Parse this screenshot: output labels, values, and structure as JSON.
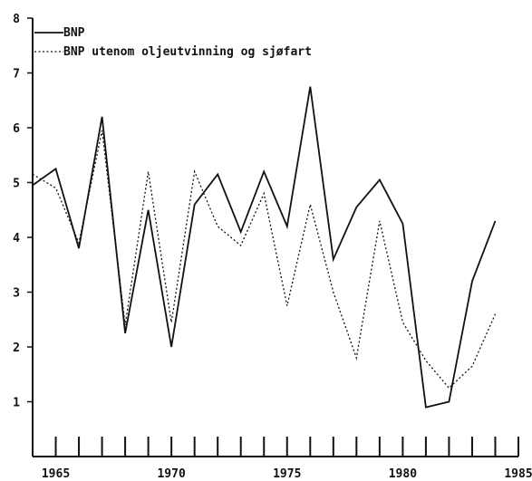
{
  "chart_data": {
    "type": "line",
    "title": "",
    "xlabel": "",
    "ylabel": "",
    "xlim": [
      1964,
      1985
    ],
    "ylim": [
      0,
      8
    ],
    "x_ticks": [
      1965,
      1970,
      1975,
      1980,
      1985
    ],
    "x_tick_labels": [
      "1965",
      "1970",
      "1975",
      "1980",
      "1985"
    ],
    "y_ticks": [
      1,
      2,
      3,
      4,
      5,
      6,
      7,
      8
    ],
    "y_tick_labels": [
      "1",
      "2",
      "3",
      "4",
      "5",
      "6",
      "7",
      "8"
    ],
    "legend_position": "top-left",
    "grid": false,
    "x": [
      1964,
      1965,
      1966,
      1967,
      1968,
      1969,
      1970,
      1971,
      1972,
      1973,
      1974,
      1975,
      1976,
      1977,
      1978,
      1979,
      1980,
      1981,
      1982,
      1983,
      1984
    ],
    "series": [
      {
        "name": "BNP",
        "style": "solid",
        "values": [
          4.95,
          5.25,
          3.8,
          6.2,
          2.25,
          4.5,
          2.0,
          4.6,
          5.15,
          4.1,
          5.2,
          4.2,
          6.75,
          3.6,
          4.55,
          5.05,
          4.25,
          0.9,
          1.0,
          3.2,
          4.3
        ]
      },
      {
        "name": "BNP utenom oljeutvinning og sjøfart",
        "style": "dotted",
        "values": [
          5.15,
          4.9,
          3.9,
          5.95,
          2.4,
          5.2,
          2.45,
          5.2,
          4.2,
          3.85,
          4.8,
          2.75,
          4.6,
          3.0,
          1.8,
          4.3,
          2.45,
          1.75,
          1.25,
          1.65,
          2.6
        ]
      }
    ]
  },
  "legend": {
    "items": [
      {
        "label": "BNP",
        "style": "solid"
      },
      {
        "label": "BNP utenom oljeutvinning og sjøfart",
        "style": "dotted"
      }
    ]
  },
  "colors": {
    "ink": "#111111",
    "background": "#ffffff"
  }
}
